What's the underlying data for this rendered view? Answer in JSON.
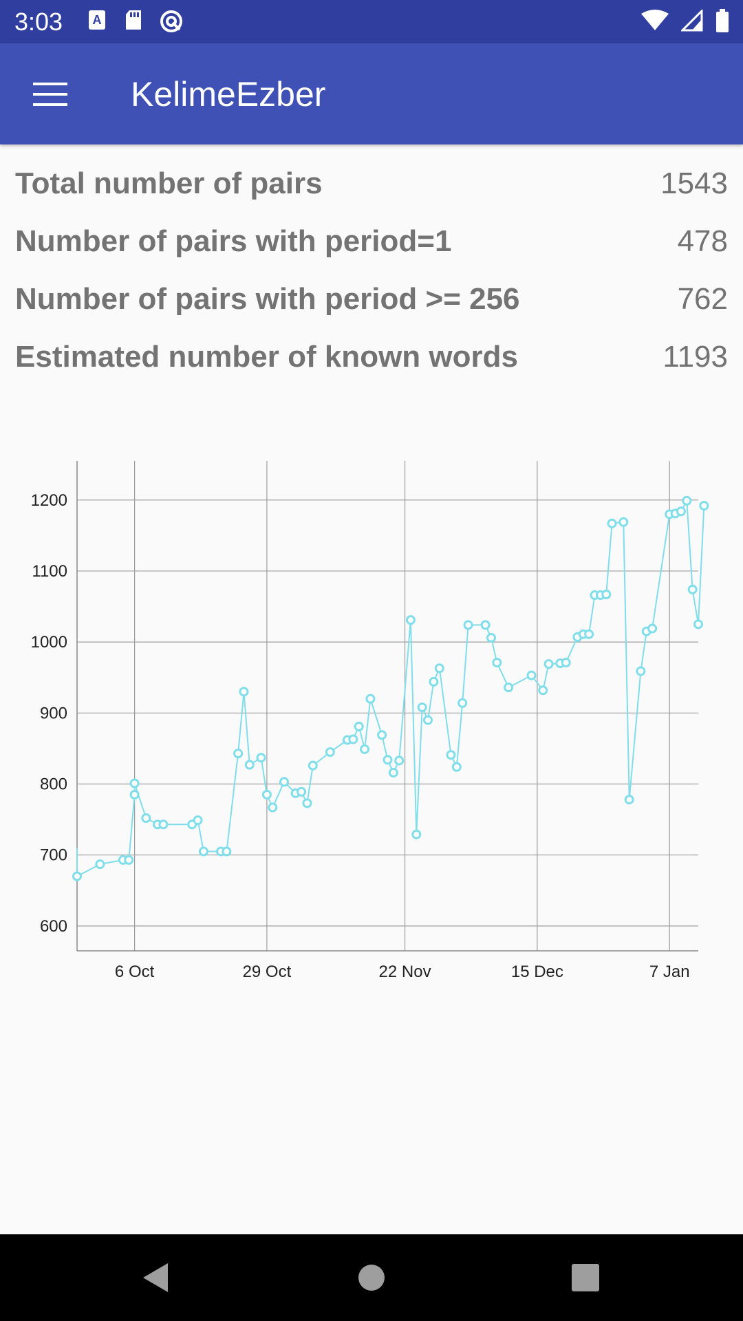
{
  "status_bar": {
    "time": "3:03",
    "left_icons": [
      "a-font-icon",
      "sd-card-icon",
      "sync-circle-icon"
    ],
    "right_icons": [
      "wifi-icon",
      "cell-signal-icon",
      "battery-icon"
    ],
    "color": "#303f9f"
  },
  "app_bar": {
    "title": "KelimeEzber",
    "menu_icon": "hamburger-menu-icon",
    "color": "#3f51b5"
  },
  "stats": [
    {
      "label": "Total number of pairs",
      "value": "1543"
    },
    {
      "label": "Number of pairs with period=1",
      "value": "478"
    },
    {
      "label": "Number of pairs with period >= 256",
      "value": "762"
    },
    {
      "label": "Estimated number of known words",
      "value": "1193"
    }
  ],
  "chart_data": {
    "type": "line",
    "x_unit": "date",
    "ylim": [
      565,
      1255
    ],
    "xlim": [
      "2018-09-26",
      "2019-01-12"
    ],
    "y_ticks": [
      600,
      700,
      800,
      900,
      1000,
      1100,
      1200
    ],
    "x_ticks": [
      {
        "label": "6 Oct",
        "date": "2018-10-06"
      },
      {
        "label": "29 Oct",
        "date": "2018-10-29"
      },
      {
        "label": "22 Nov",
        "date": "2018-11-22"
      },
      {
        "label": "15 Dec",
        "date": "2018-12-15"
      },
      {
        "label": "7 Jan",
        "date": "2019-01-07"
      }
    ],
    "grid": true,
    "line_color": "#80deea",
    "series": [
      {
        "points": [
          [
            "2018-09-26",
            710
          ],
          [
            "2018-09-26",
            670
          ],
          [
            "2018-09-30",
            687
          ],
          [
            "2018-10-04",
            693
          ],
          [
            "2018-10-05",
            693
          ],
          [
            "2018-10-06",
            785
          ],
          [
            "2018-10-06",
            801
          ],
          [
            "2018-10-08",
            752
          ],
          [
            "2018-10-10",
            743
          ],
          [
            "2018-10-11",
            743
          ],
          [
            "2018-10-16",
            743
          ],
          [
            "2018-10-17",
            749
          ],
          [
            "2018-10-18",
            705
          ],
          [
            "2018-10-21",
            705
          ],
          [
            "2018-10-22",
            705
          ],
          [
            "2018-10-24",
            843
          ],
          [
            "2018-10-25",
            930
          ],
          [
            "2018-10-26",
            827
          ],
          [
            "2018-10-28",
            837
          ],
          [
            "2018-10-29",
            785
          ],
          [
            "2018-10-30",
            767
          ],
          [
            "2018-11-01",
            803
          ],
          [
            "2018-11-03",
            787
          ],
          [
            "2018-11-04",
            789
          ],
          [
            "2018-11-05",
            773
          ],
          [
            "2018-11-06",
            826
          ],
          [
            "2018-11-09",
            845
          ],
          [
            "2018-11-12",
            862
          ],
          [
            "2018-11-13",
            863
          ],
          [
            "2018-11-14",
            881
          ],
          [
            "2018-11-15",
            849
          ],
          [
            "2018-11-16",
            920
          ],
          [
            "2018-11-18",
            869
          ],
          [
            "2018-11-19",
            834
          ],
          [
            "2018-11-20",
            816
          ],
          [
            "2018-11-21",
            833
          ],
          [
            "2018-11-23",
            1031
          ],
          [
            "2018-11-24",
            729
          ],
          [
            "2018-11-25",
            908
          ],
          [
            "2018-11-26",
            890
          ],
          [
            "2018-11-27",
            944
          ],
          [
            "2018-11-28",
            963
          ],
          [
            "2018-11-30",
            841
          ],
          [
            "2018-12-01",
            824
          ],
          [
            "2018-12-02",
            914
          ],
          [
            "2018-12-03",
            1024
          ],
          [
            "2018-12-06",
            1024
          ],
          [
            "2018-12-07",
            1006
          ],
          [
            "2018-12-08",
            971
          ],
          [
            "2018-12-10",
            936
          ],
          [
            "2018-12-14",
            953
          ],
          [
            "2018-12-16",
            932
          ],
          [
            "2018-12-17",
            969
          ],
          [
            "2018-12-19",
            970
          ],
          [
            "2018-12-20",
            971
          ],
          [
            "2018-12-22",
            1007
          ],
          [
            "2018-12-23",
            1011
          ],
          [
            "2018-12-24",
            1011
          ],
          [
            "2018-12-25",
            1066
          ],
          [
            "2018-12-26",
            1066
          ],
          [
            "2018-12-27",
            1067
          ],
          [
            "2018-12-28",
            1167
          ],
          [
            "2018-12-30",
            1169
          ],
          [
            "2018-12-31",
            778
          ],
          [
            "2019-01-02",
            959
          ],
          [
            "2019-01-03",
            1015
          ],
          [
            "2019-01-04",
            1019
          ],
          [
            "2019-01-07",
            1180
          ],
          [
            "2019-01-08",
            1181
          ],
          [
            "2019-01-09",
            1184
          ],
          [
            "2019-01-10",
            1199
          ],
          [
            "2019-01-11",
            1074
          ],
          [
            "2019-01-12",
            1025
          ],
          [
            "2019-01-13",
            1192
          ]
        ]
      }
    ]
  },
  "nav_bar": {
    "buttons": [
      "back-triangle-icon",
      "home-circle-icon",
      "recents-square-icon"
    ]
  }
}
